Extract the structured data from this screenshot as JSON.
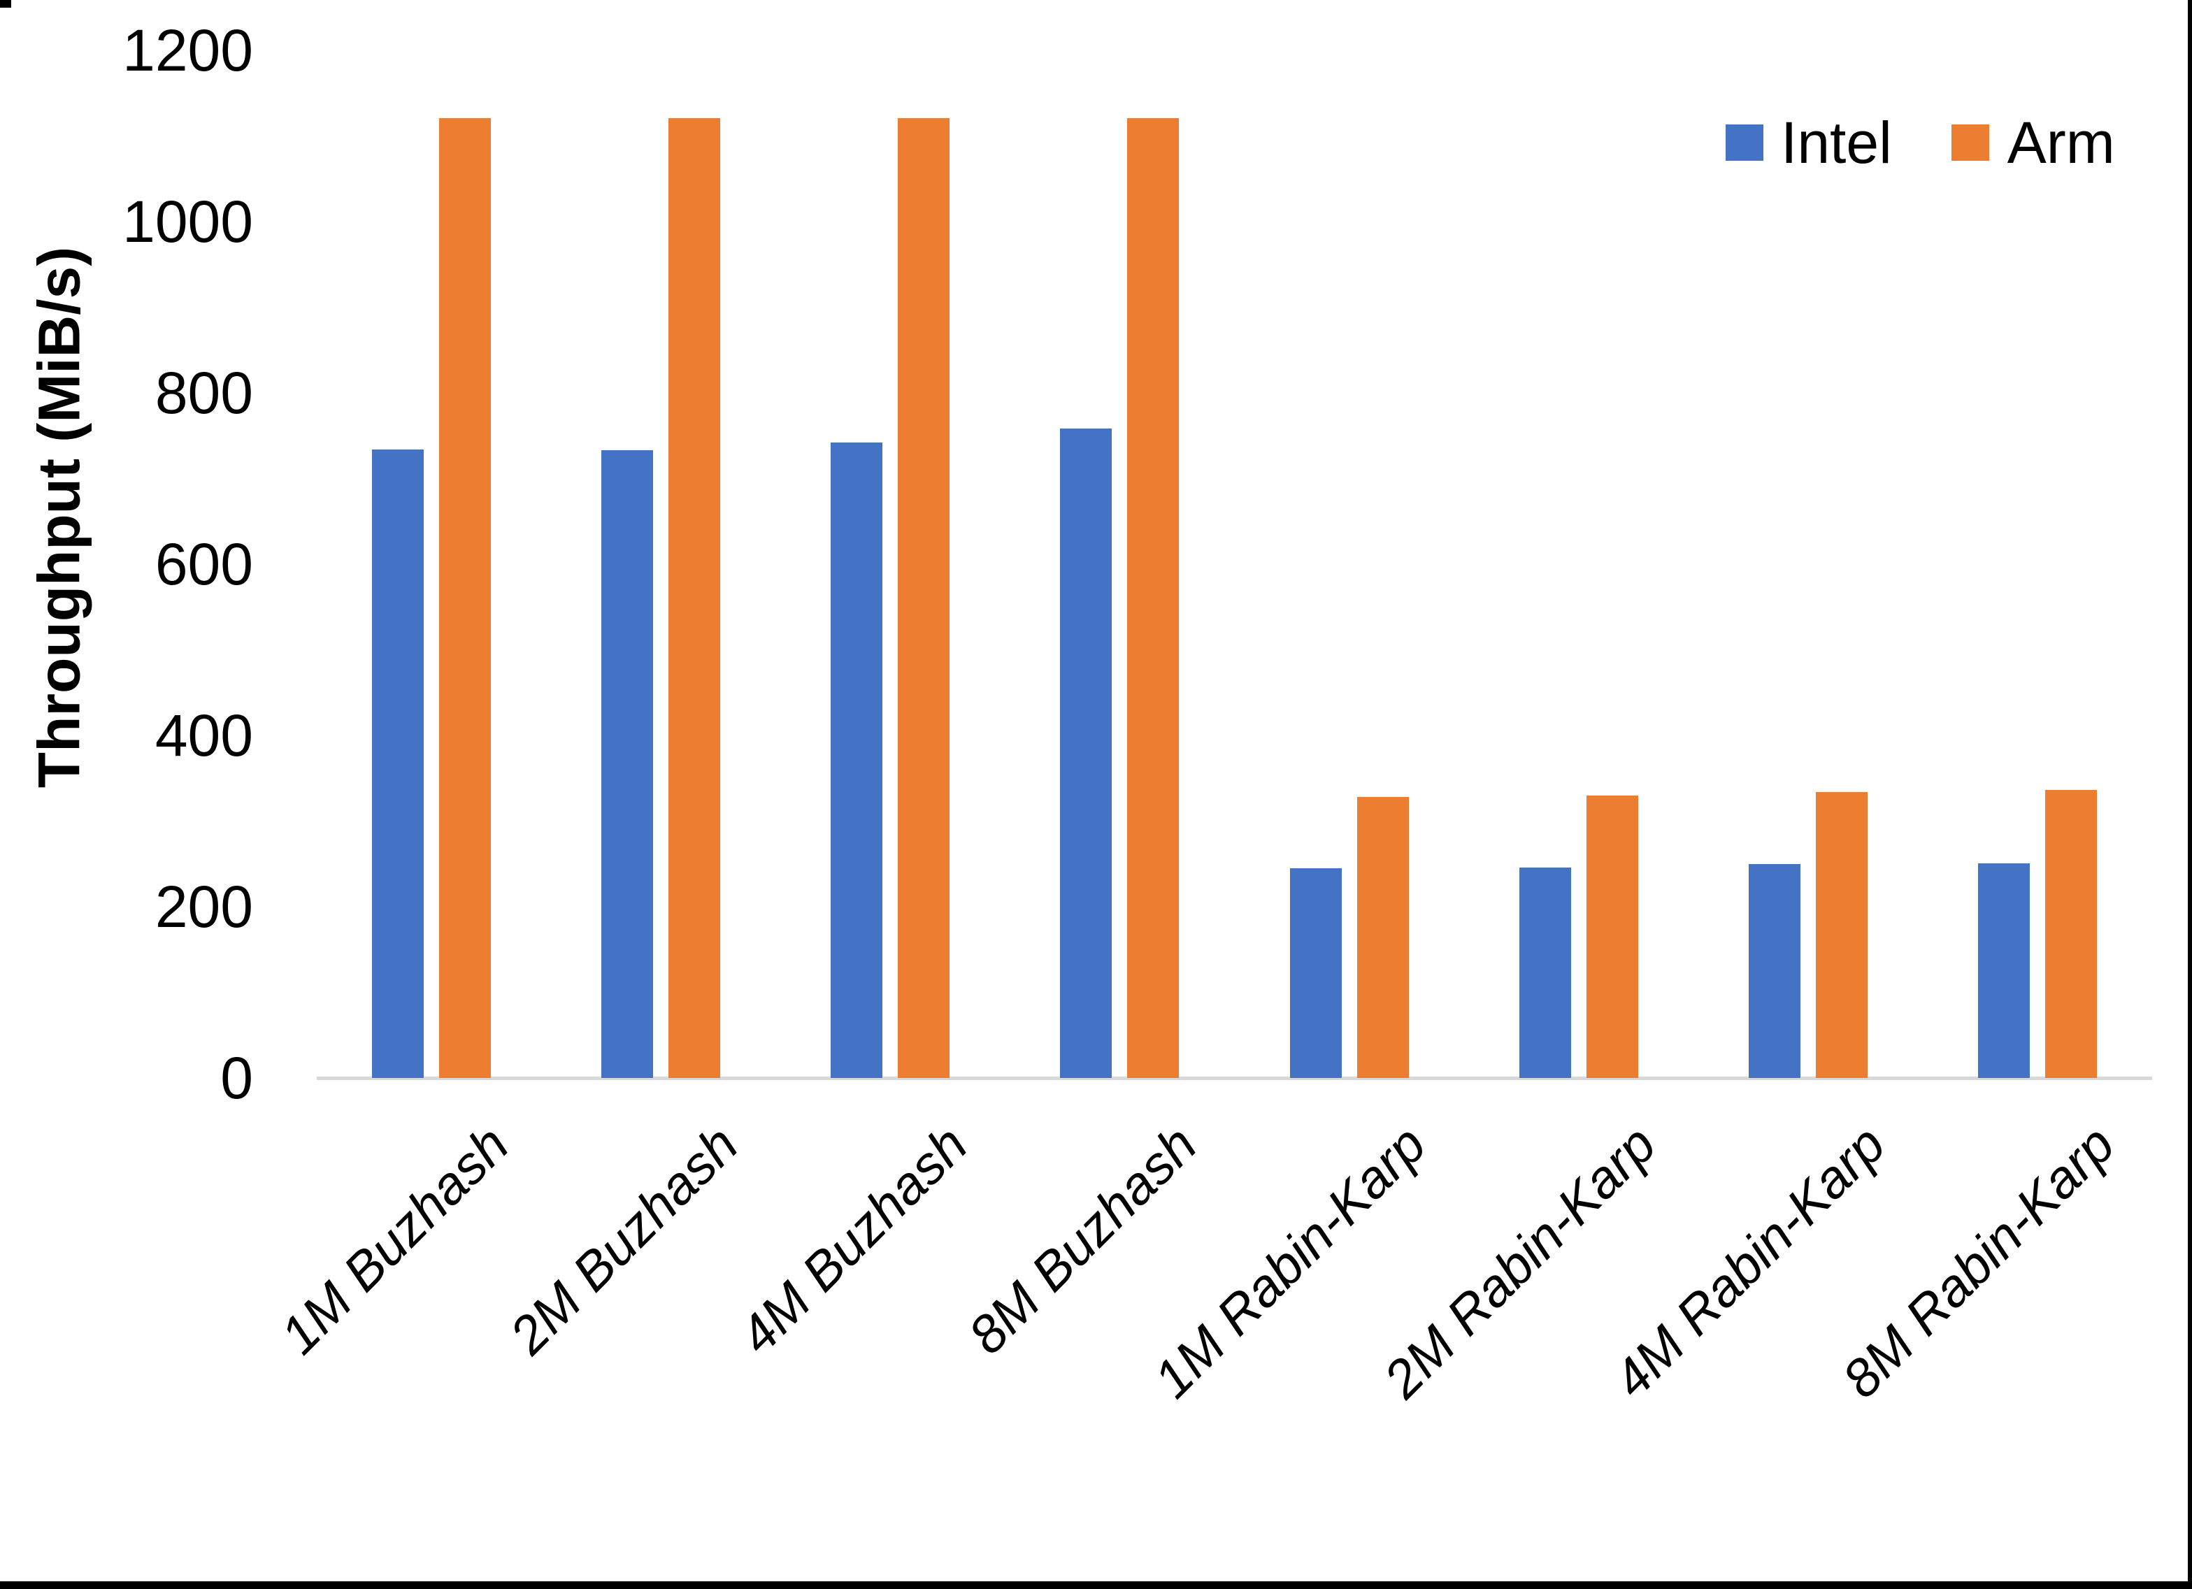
{
  "chart_data": {
    "type": "bar",
    "title": "",
    "ylabel": "Throughput (MiB/s)",
    "xlabel": "",
    "ylim": [
      0,
      1200
    ],
    "ytick_step": 200,
    "yticks": [
      0,
      200,
      400,
      600,
      800,
      1000,
      1200
    ],
    "grid": false,
    "legend_position": "top-right",
    "categories": [
      "1M Buzhash",
      "2M Buzhash",
      "4M Buzhash",
      "8M Buzhash",
      "1M Rabin-Karp",
      "2M Rabin-Karp",
      "4M Rabin-Karp",
      "8M Rabin-Karp"
    ],
    "series": [
      {
        "name": "Intel",
        "color": "#4472C4",
        "values": [
          734,
          733,
          742,
          758,
          245,
          246,
          250,
          251
        ]
      },
      {
        "name": "Arm",
        "color": "#ED7D31",
        "values": [
          1121,
          1121,
          1121,
          1121,
          328,
          330,
          334,
          336
        ]
      }
    ],
    "colors": {
      "axis_line": "#D9D9D9",
      "text": "#000000",
      "background": "#FFFFFF",
      "frame_border": "#000000"
    }
  }
}
